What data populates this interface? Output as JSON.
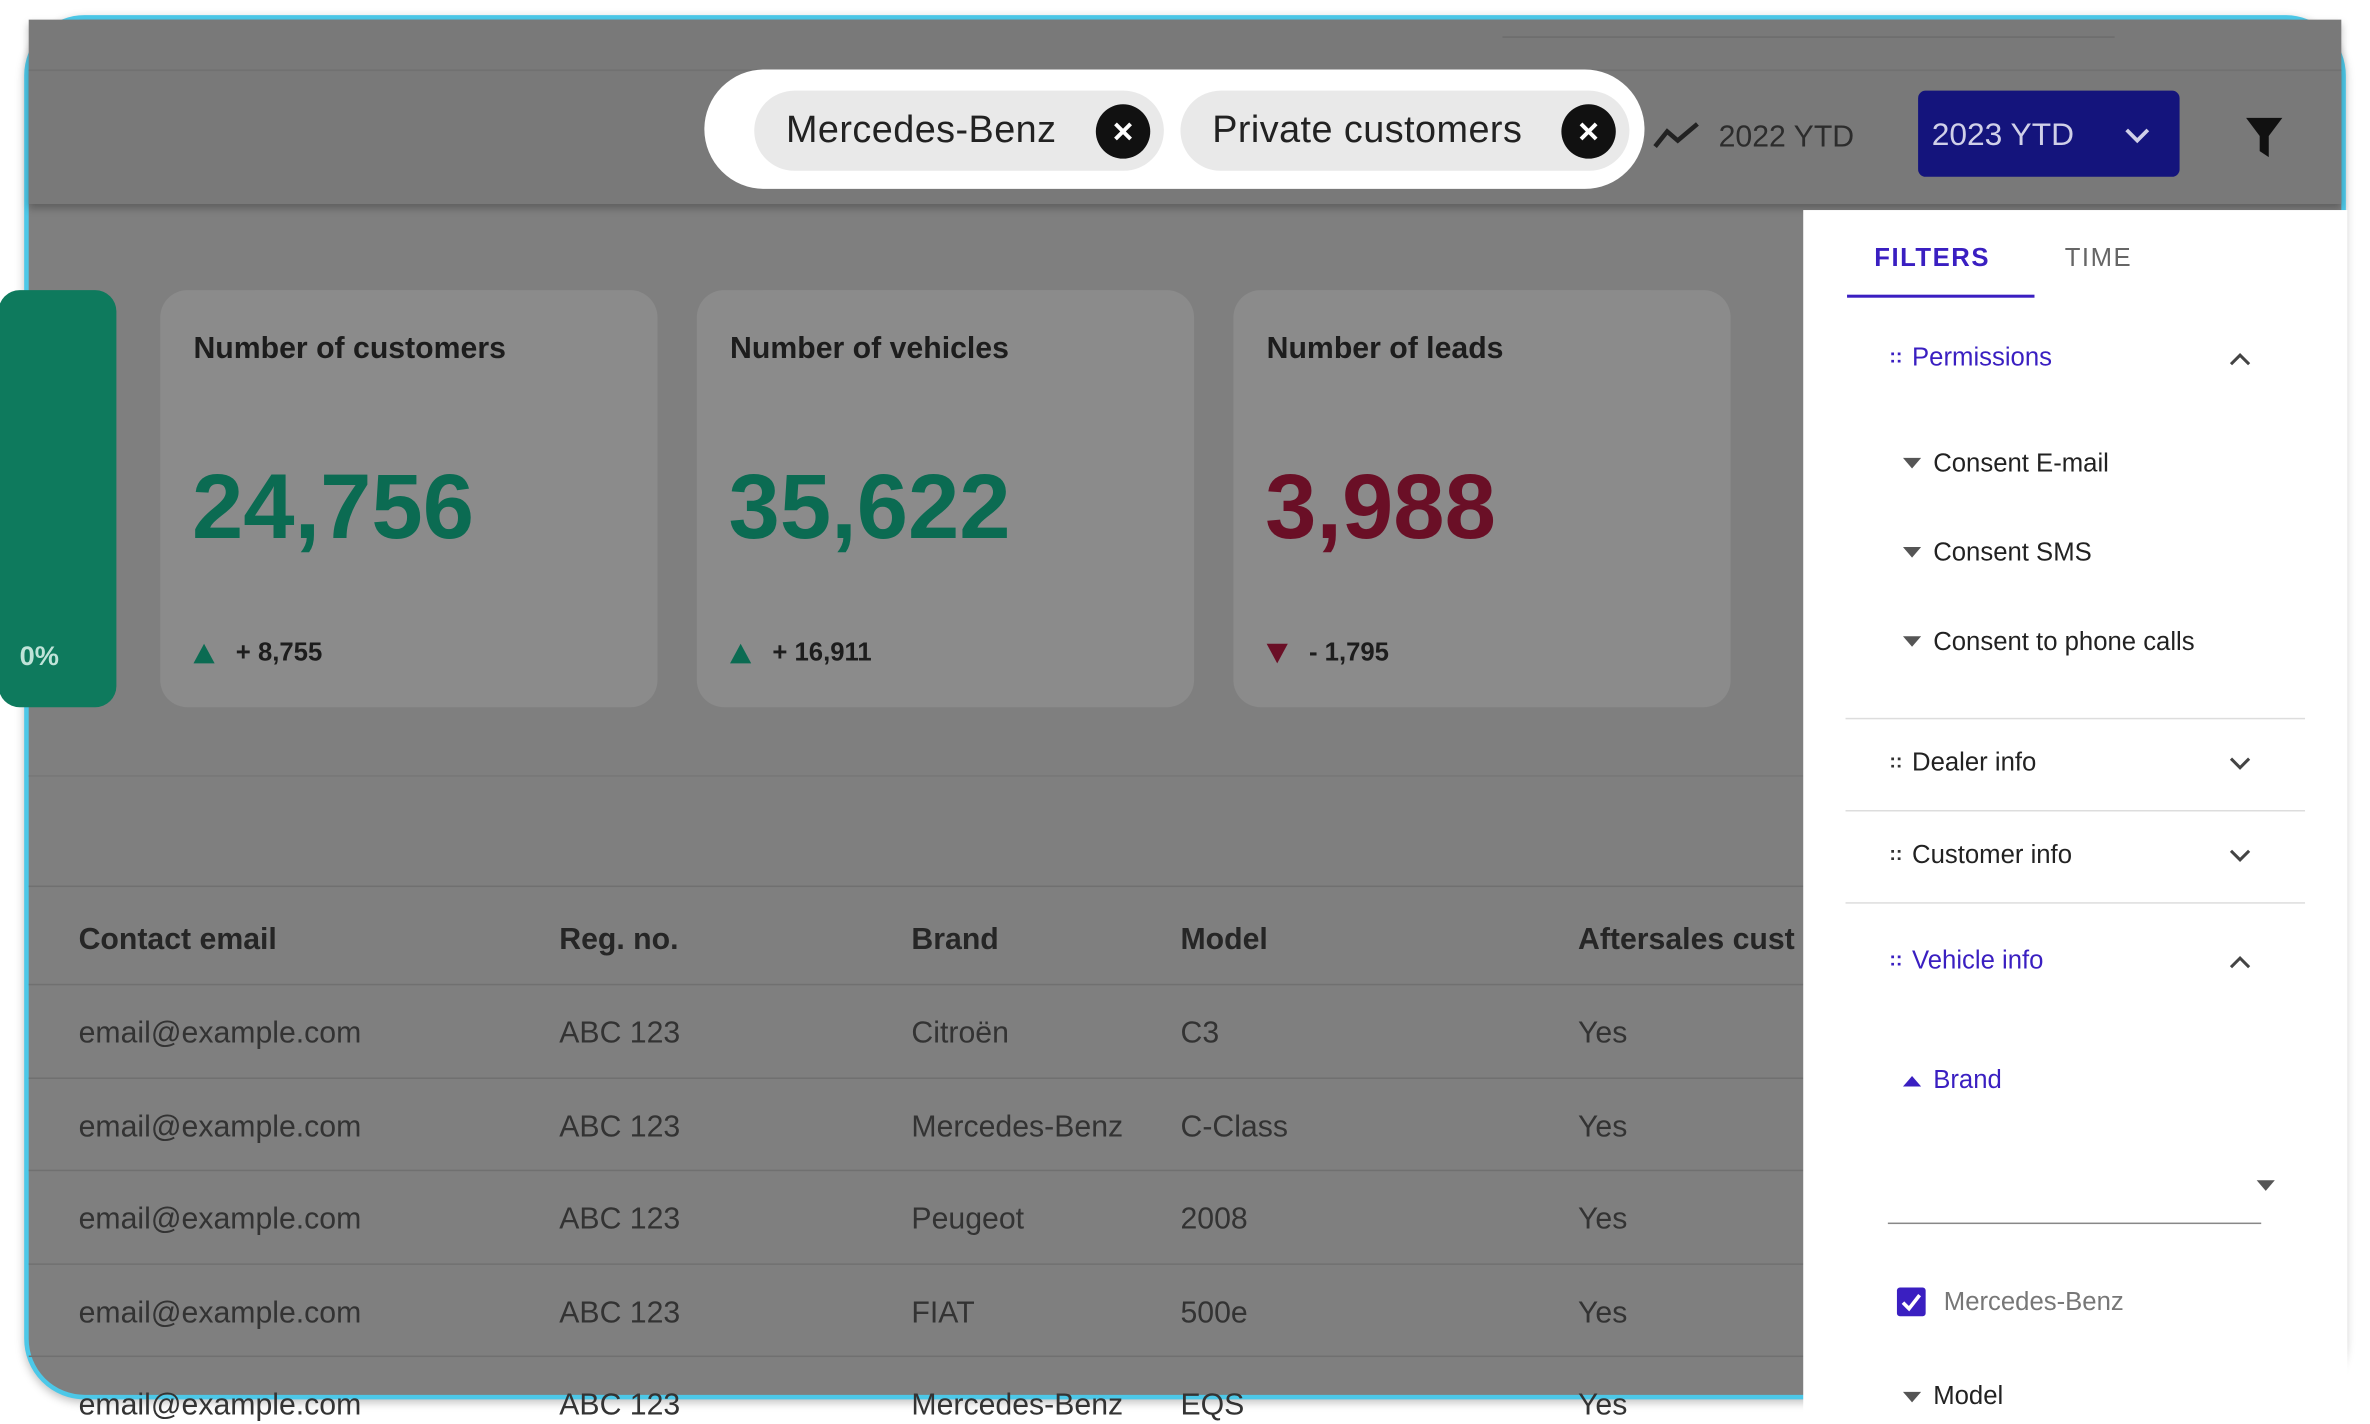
{
  "header": {
    "chips": [
      "Mercedes-Benz",
      "Private customers"
    ],
    "compare": "2022 YTD",
    "period": "2023 YTD"
  },
  "partial_card": {
    "value": "0%"
  },
  "cards": [
    {
      "title": "Number of customers",
      "value": "24,756",
      "change": "+ 8,755",
      "trend": "up"
    },
    {
      "title": "Number of vehicles",
      "value": "35,622",
      "change": "+ 16,911",
      "trend": "up"
    },
    {
      "title": "Number of leads",
      "value": "3,988",
      "change": "- 1,795",
      "trend": "down"
    }
  ],
  "table": {
    "columns": [
      "Contact email",
      "Reg. no.",
      "Brand",
      "Model",
      "Aftersales cust"
    ],
    "rows": [
      [
        "email@example.com",
        "ABC 123",
        "Citroën",
        "C3",
        "Yes"
      ],
      [
        "email@example.com",
        "ABC 123",
        "Mercedes-Benz",
        "C-Class",
        "Yes"
      ],
      [
        "email@example.com",
        "ABC 123",
        "Peugeot",
        "2008",
        "Yes"
      ],
      [
        "email@example.com",
        "ABC 123",
        "FIAT",
        "500e",
        "Yes"
      ],
      [
        "email@example.com",
        "ABC 123",
        "Mercedes-Benz",
        "EQS",
        "Yes"
      ]
    ]
  },
  "panel": {
    "tabs": [
      "FILTERS",
      "TIME"
    ],
    "permissions": {
      "title": "Permissions",
      "items": [
        "Consent E-mail",
        "Consent SMS",
        "Consent to phone calls"
      ]
    },
    "dealer": "Dealer info",
    "customer": "Customer info",
    "vehicle": {
      "title": "Vehicle info",
      "brand": "Brand",
      "option": "Mercedes-Benz",
      "model": "Model"
    }
  }
}
